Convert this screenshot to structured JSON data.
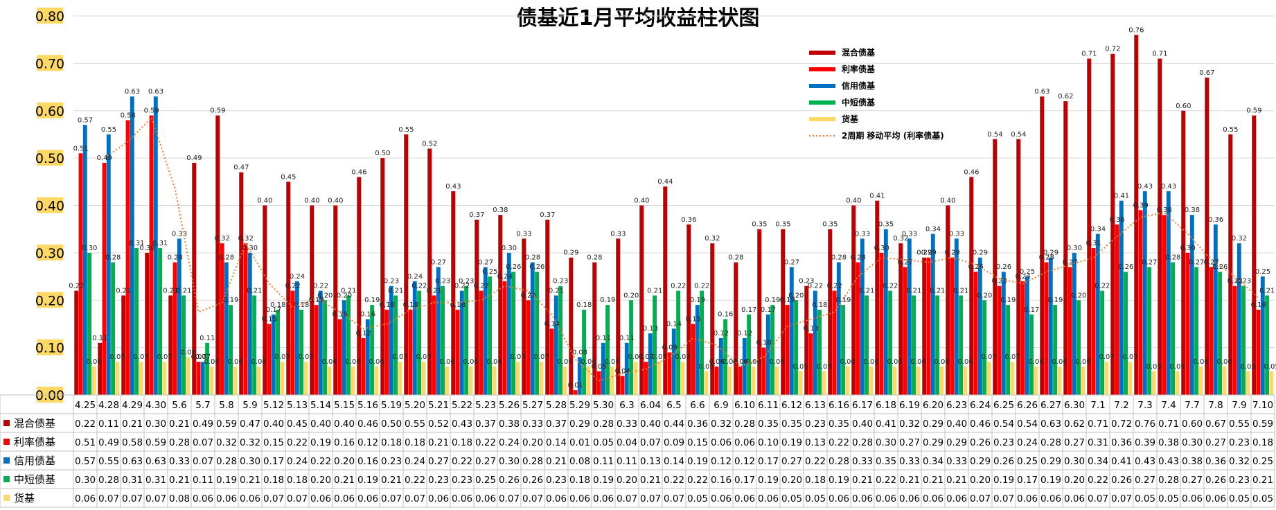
{
  "chart_data": {
    "type": "bar",
    "title": "债基近1月平均收益柱状图",
    "ylim": [
      0,
      0.8
    ],
    "yticks": [
      "0.00",
      "0.10",
      "0.20",
      "0.30",
      "0.40",
      "0.50",
      "0.60",
      "0.70",
      "0.80"
    ],
    "categories": [
      "4.25",
      "4.28",
      "4.29",
      "4.30",
      "5.6",
      "5.7",
      "5.8",
      "5.9",
      "5.12",
      "5.13",
      "5.14",
      "5.15",
      "5.16",
      "5.19",
      "5.20",
      "5.21",
      "5.22",
      "5.23",
      "5.26",
      "5.27",
      "5.28",
      "5.29",
      "5.30",
      "6.3",
      "6.04",
      "6.5",
      "6.6",
      "6.9",
      "6.10",
      "6.11",
      "6.12",
      "6.13",
      "6.16",
      "6.17",
      "6.18",
      "6.19",
      "6.20",
      "6.23",
      "6.24",
      "6.25",
      "6.26",
      "6.27",
      "6.30",
      "7.1",
      "7.2",
      "7.3",
      "7.4",
      "7.7",
      "7.8",
      "7.9",
      "7.10"
    ],
    "series": [
      {
        "name": "混合债基",
        "color": "#C00000",
        "values": [
          "0.22",
          "0.11",
          "0.21",
          "0.30",
          "0.21",
          "0.49",
          "0.59",
          "0.47",
          "0.40",
          "0.45",
          "0.40",
          "0.40",
          "0.46",
          "0.50",
          "0.55",
          "0.52",
          "0.43",
          "0.37",
          "0.38",
          "0.33",
          "0.37",
          "0.29",
          "0.28",
          "0.33",
          "0.40",
          "0.44",
          "0.36",
          "0.32",
          "0.28",
          "0.35",
          "0.35",
          "0.23",
          "0.35",
          "0.40",
          "0.41",
          "0.32",
          "0.29",
          "0.40",
          "0.46",
          "0.54",
          "0.54",
          "0.63",
          "0.62",
          "0.71",
          "0.72",
          "0.76",
          "0.71",
          "0.60",
          "0.67",
          "0.55",
          "0.59"
        ]
      },
      {
        "name": "利率债基",
        "color": "#FF0000",
        "values": [
          "0.51",
          "0.49",
          "0.58",
          "0.59",
          "0.28",
          "0.07",
          "0.32",
          "0.32",
          "0.15",
          "0.22",
          "0.19",
          "0.16",
          "0.12",
          "0.18",
          "0.18",
          "0.21",
          "0.18",
          "0.22",
          "0.24",
          "0.20",
          "0.14",
          "0.01",
          "0.05",
          "0.04",
          "0.07",
          "0.09",
          "0.15",
          "0.06",
          "0.06",
          "0.10",
          "0.19",
          "0.13",
          "0.22",
          "0.28",
          "0.30",
          "0.27",
          "0.29",
          "0.29",
          "0.26",
          "0.23",
          "0.24",
          "0.28",
          "0.27",
          "0.31",
          "0.36",
          "0.39",
          "0.38",
          "0.30",
          "0.27",
          "0.23",
          "0.18"
        ]
      },
      {
        "name": "信用债基",
        "color": "#0070C0",
        "values": [
          "0.57",
          "0.55",
          "0.63",
          "0.63",
          "0.33",
          "0.07",
          "0.28",
          "0.30",
          "0.17",
          "0.24",
          "0.22",
          "0.20",
          "0.16",
          "0.23",
          "0.24",
          "0.27",
          "0.22",
          "0.27",
          "0.30",
          "0.28",
          "0.21",
          "0.08",
          "0.11",
          "0.11",
          "0.13",
          "0.14",
          "0.19",
          "0.12",
          "0.12",
          "0.17",
          "0.27",
          "0.22",
          "0.28",
          "0.33",
          "0.35",
          "0.33",
          "0.34",
          "0.33",
          "0.29",
          "0.26",
          "0.25",
          "0.29",
          "0.30",
          "0.34",
          "0.41",
          "0.43",
          "0.43",
          "0.38",
          "0.36",
          "0.32",
          "0.25"
        ]
      },
      {
        "name": "中短债基",
        "color": "#00B050",
        "values": [
          "0.30",
          "0.28",
          "0.31",
          "0.31",
          "0.21",
          "0.11",
          "0.19",
          "0.21",
          "0.18",
          "0.18",
          "0.20",
          "0.21",
          "0.19",
          "0.21",
          "0.22",
          "0.23",
          "0.23",
          "0.25",
          "0.26",
          "0.26",
          "0.23",
          "0.18",
          "0.19",
          "0.20",
          "0.21",
          "0.22",
          "0.22",
          "0.16",
          "0.17",
          "0.19",
          "0.20",
          "0.18",
          "0.19",
          "0.21",
          "0.22",
          "0.21",
          "0.21",
          "0.21",
          "0.20",
          "0.19",
          "0.17",
          "0.19",
          "0.20",
          "0.22",
          "0.26",
          "0.27",
          "0.28",
          "0.27",
          "0.26",
          "0.23",
          "0.21"
        ]
      },
      {
        "name": "货基",
        "color": "#FFD966",
        "values": [
          "0.06",
          "0.07",
          "0.07",
          "0.07",
          "0.08",
          "0.06",
          "0.06",
          "0.06",
          "0.07",
          "0.07",
          "0.06",
          "0.06",
          "0.06",
          "0.07",
          "0.07",
          "0.06",
          "0.06",
          "0.06",
          "0.07",
          "0.07",
          "0.06",
          "0.06",
          "0.06",
          "0.07",
          "0.07",
          "0.07",
          "0.05",
          "0.06",
          "0.06",
          "0.06",
          "0.05",
          "0.05",
          "0.06",
          "0.06",
          "0.06",
          "0.06",
          "0.06",
          "0.06",
          "0.07",
          "0.07",
          "0.06",
          "0.06",
          "0.06",
          "0.07",
          "0.07",
          "0.05",
          "0.05",
          "0.06",
          "0.06",
          "0.05",
          "0.05"
        ]
      }
    ],
    "trendline": {
      "name": "2周期 移动平均 (利率债基)",
      "color": "#ED7D31",
      "period": 2
    },
    "legend": "top-right",
    "data_table": true,
    "grid": true
  }
}
